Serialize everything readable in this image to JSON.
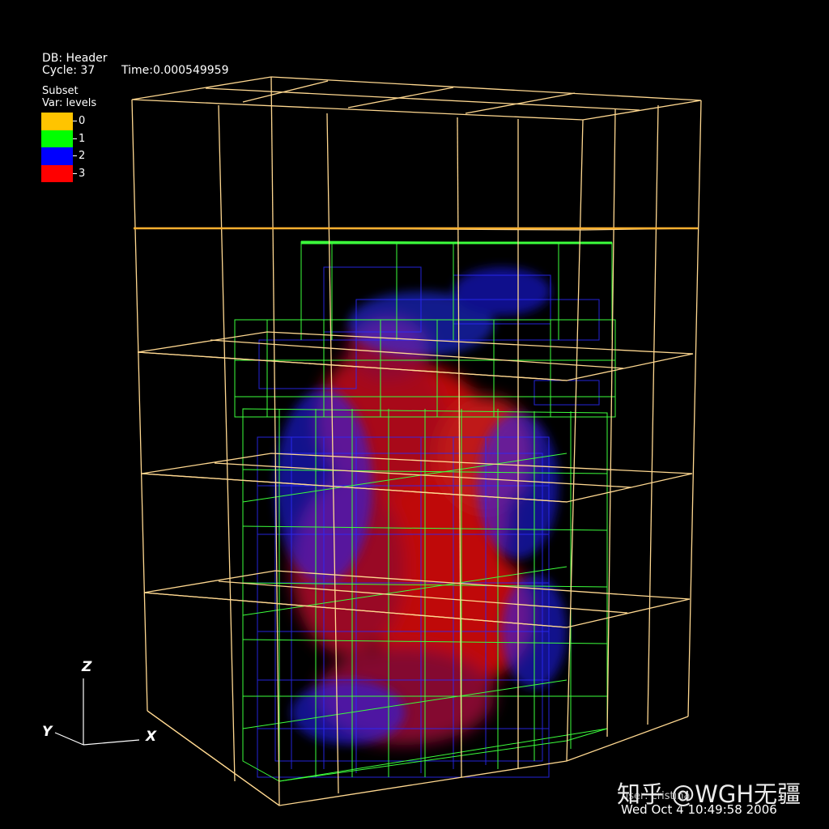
{
  "header": {
    "db": "DB: Header",
    "cycle": "Cycle: 37",
    "time": "Time:0.000549959"
  },
  "plot": {
    "subset": "Subset",
    "var": "Var: levels",
    "legend": [
      {
        "label": "0",
        "color": "#ffc400"
      },
      {
        "label": "1",
        "color": "#00ff00"
      },
      {
        "label": "2",
        "color": "#0000ff"
      },
      {
        "label": "3",
        "color": "#ff0000"
      }
    ]
  },
  "colors": {
    "domain_box": "#ffd890",
    "level1": "#4dff4d",
    "level2": "#2020ff",
    "level3": "#ff1a1a"
  },
  "axes": {
    "z": "Z",
    "y": "Y",
    "x": "X"
  },
  "footer": {
    "user": "user: cristina",
    "date": "Wed Oct  4 10:49:58 2006"
  },
  "watermark": "知乎 @WGH无疆"
}
